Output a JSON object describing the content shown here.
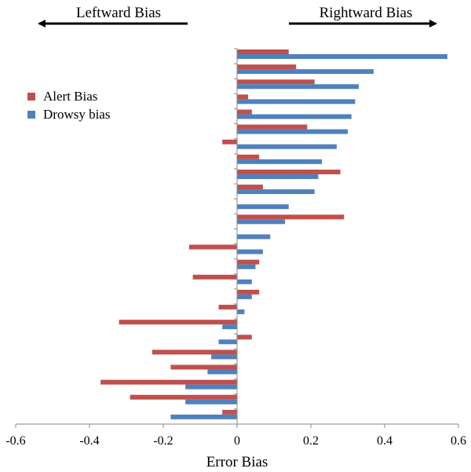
{
  "chart_data": {
    "type": "bar",
    "orientation": "horizontal",
    "xlabel": "Error Bias",
    "xlim": [
      -0.6,
      0.6
    ],
    "xticks": [
      "-0.6",
      "-0.4",
      "-0.2",
      "0",
      "0.2",
      "0.4",
      "0.6"
    ],
    "grid": false,
    "legend_position": "upper-left",
    "annotations": {
      "left": "Leftward Bias",
      "right": "Rightward Bias"
    },
    "series": [
      {
        "name": "Alert Bias",
        "color": "#c0504d",
        "values": [
          0.14,
          0.16,
          0.21,
          0.03,
          0.04,
          0.19,
          -0.04,
          0.06,
          0.28,
          0.07,
          0.0,
          0.29,
          0.0,
          -0.13,
          0.06,
          -0.12,
          0.06,
          -0.05,
          -0.32,
          0.04,
          -0.23,
          -0.18,
          -0.37,
          -0.29,
          -0.04
        ]
      },
      {
        "name": "Drowsy bias",
        "color": "#4f81bd",
        "values": [
          0.57,
          0.37,
          0.33,
          0.32,
          0.31,
          0.3,
          0.27,
          0.23,
          0.22,
          0.21,
          0.14,
          0.13,
          0.09,
          0.07,
          0.05,
          0.04,
          0.04,
          0.02,
          -0.04,
          -0.05,
          -0.07,
          -0.08,
          -0.14,
          -0.14,
          -0.18
        ]
      }
    ]
  }
}
